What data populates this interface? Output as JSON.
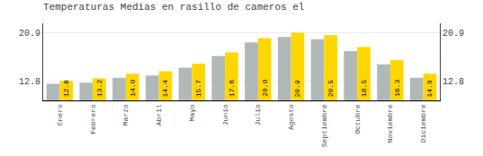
{
  "chart_data": {
    "type": "bar",
    "title": "Temperaturas Medias en rasillo de cameros el",
    "categories": [
      "Enero",
      "Febrero",
      "Marzo",
      "Abril",
      "Mayo",
      "Junio",
      "Julio",
      "Agosto",
      "Septiembre",
      "Octubre",
      "Noviembre",
      "Diciembre"
    ],
    "series": [
      {
        "color": "#B0B8B8",
        "values": [
          12.3,
          12.5,
          13.3,
          13.7,
          15.0,
          17.0,
          19.3,
          20.2,
          19.8,
          17.8,
          15.6,
          13.3
        ]
      },
      {
        "color": "#FFD700",
        "values": [
          12.8,
          13.2,
          14.0,
          14.4,
          15.7,
          17.6,
          20.0,
          20.9,
          20.5,
          18.5,
          16.3,
          14.0
        ],
        "data_labels": true,
        "value_labels": [
          "12.8",
          "13.2",
          "14.0",
          "14.4",
          "15.7",
          "17.6",
          "20.0",
          "20.9",
          "20.5",
          "18.5",
          "16.3",
          "14.0"
        ]
      }
    ],
    "ylim": [
      9.5,
      22.5
    ],
    "yticks": [
      12.8,
      20.9
    ],
    "y2lim": [
      9.5,
      22.5
    ],
    "y2ticks": [
      12.8,
      20.9
    ],
    "grid": true
  }
}
